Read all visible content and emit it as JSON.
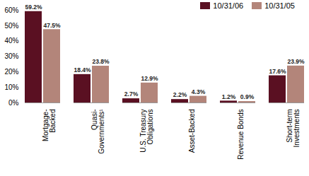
{
  "chart_data": {
    "type": "bar",
    "categories": [
      "Mortgage-Backed",
      "Quasi-Governments¹",
      "U.S. Treasury Obligations",
      "Asset-Backed",
      "Revenue Bonds",
      "Short-term Investments"
    ],
    "series": [
      {
        "name": "10/31/06",
        "color": "#5a1022",
        "values": [
          59.2,
          18.4,
          2.7,
          2.2,
          1.2,
          17.6
        ],
        "value_labels": [
          "59.2%",
          "18.4%",
          "2.7%",
          "2.2%",
          "1.2%",
          "17.6%"
        ]
      },
      {
        "name": "10/31/05",
        "color": "#b3857a",
        "values": [
          47.5,
          23.8,
          12.9,
          4.3,
          0.9,
          23.9
        ],
        "value_labels": [
          "47.5%",
          "23.8%",
          "12.9%",
          "4.3%",
          "0.9%",
          "23.9%"
        ]
      }
    ],
    "ylim": [
      0,
      60
    ],
    "yticks": [
      {
        "value": 0,
        "label": "0%"
      },
      {
        "value": 10,
        "label": "10%"
      },
      {
        "value": 20,
        "label": "20%"
      },
      {
        "value": 30,
        "label": "30%"
      },
      {
        "value": 40,
        "label": "40%"
      },
      {
        "value": 50,
        "label": "50%"
      },
      {
        "value": 60,
        "label": "60%"
      }
    ],
    "grid": false,
    "legend": "top-right",
    "data_labels": true
  }
}
